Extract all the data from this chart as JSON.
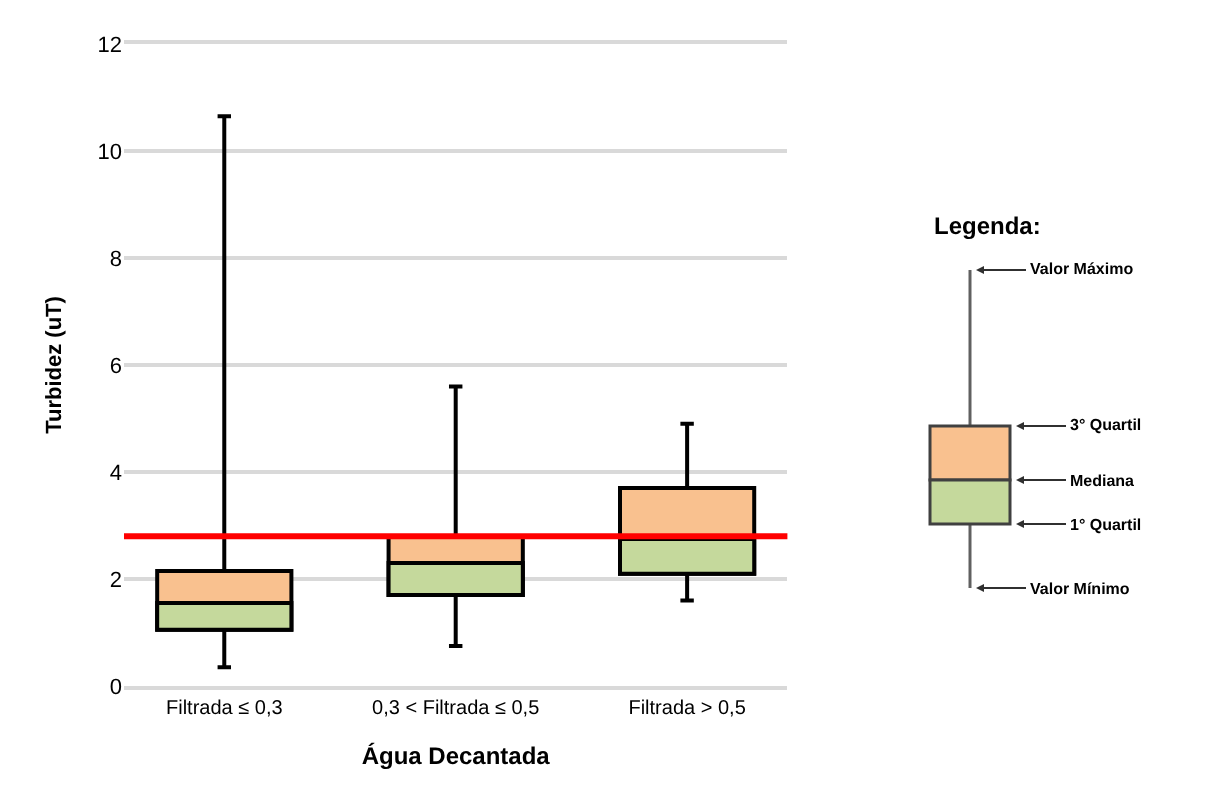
{
  "chart_data": {
    "type": "box",
    "xlabel": "Água Decantada",
    "ylabel": "Turbidez (uT)",
    "categories": [
      "Filtrada ≤ 0,3",
      "0,3 < Filtrada ≤ 0,5",
      "Filtrada > 0,5"
    ],
    "series": [
      {
        "color": "#f9c18f",
        "colors": [
          "#c5d99c",
          "#c5d99c",
          "#c5d99c"
        ],
        "boxes": [
          {
            "low": 0.35,
            "q1": 1.05,
            "median": 1.55,
            "q3": 2.15,
            "high": 10.65
          },
          {
            "low": 0.75,
            "q1": 1.7,
            "median": 2.3,
            "q3": 2.8,
            "high": 5.6
          },
          {
            "low": 1.6,
            "q1": 2.1,
            "median": 2.75,
            "q3": 3.7,
            "high": 4.9
          }
        ]
      }
    ],
    "ylim": [
      0,
      12
    ],
    "yticks": [
      0,
      2,
      4,
      6,
      8,
      10,
      12
    ],
    "grid": "y",
    "ref_lines": [
      {
        "axis": "y",
        "value": 2.8,
        "color": "#ff0000"
      }
    ],
    "annotations": [
      "Legenda:",
      "Valor Máximo",
      "3° Quartil",
      "Mediana",
      "1° Quartil",
      "Valor Mínimo"
    ]
  }
}
